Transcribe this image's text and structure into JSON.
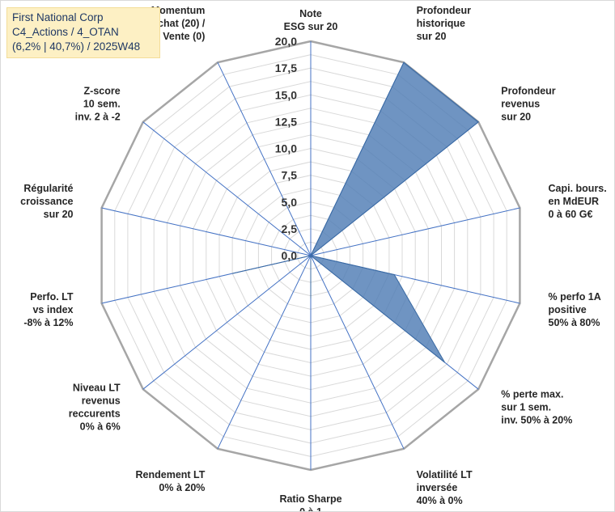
{
  "title_box": {
    "line1": "First National Corp",
    "line2": "C4_Actions / 4_OTAN",
    "line3": "(6,2% | 40,7%) / 2025W48"
  },
  "colors": {
    "series_fill": "#4f7db5",
    "series_stroke": "#3a6aa3",
    "spoke": "#4472c4",
    "ring": "#d9d9d9",
    "outer_ring": "#a6a6a6",
    "title_bg": "#fdf0c4",
    "title_text": "#1f3864"
  },
  "chart_data": {
    "type": "radar",
    "rmin": 0,
    "rmax": 20,
    "ring_step": 2.5,
    "minor_step": 1.25,
    "tick_labels": [
      "0,0",
      "2,5",
      "5,0",
      "7,5",
      "10,0",
      "12,5",
      "15,0",
      "17,5",
      "20,0"
    ],
    "axes": [
      [
        "Note",
        "ESG sur 20"
      ],
      [
        "Profondeur",
        "historique",
        "sur 20"
      ],
      [
        "Profondeur",
        "revenus",
        "sur 20"
      ],
      [
        "Capi. bours.",
        "en MdEUR",
        "0 à 60 G€"
      ],
      [
        "% perfo 1A",
        "positive",
        "50% à 80%"
      ],
      [
        "% perte max.",
        "sur 1 sem.",
        "inv. 50% à 20%"
      ],
      [
        "Volatilité LT",
        "inversée",
        "40% à 0%"
      ],
      [
        "Ratio Sharpe",
        "0 à 1"
      ],
      [
        "Rendement LT",
        "0% à 20%"
      ],
      [
        "Niveau LT",
        "revenus",
        "reccurents",
        "0% à 6%"
      ],
      [
        "Perfo. LT",
        "vs index",
        "-8% à 12%"
      ],
      [
        "Régularité",
        "croissance",
        "sur 20"
      ],
      [
        "Z-score",
        "10 sem.",
        "inv. 2 à -2"
      ],
      [
        "Momentum",
        "Achat (20) /",
        "Vente (0)"
      ]
    ],
    "values": [
      0,
      20,
      20,
      0,
      8,
      16,
      0,
      4,
      0,
      0,
      7.5,
      0,
      0,
      0
    ]
  }
}
